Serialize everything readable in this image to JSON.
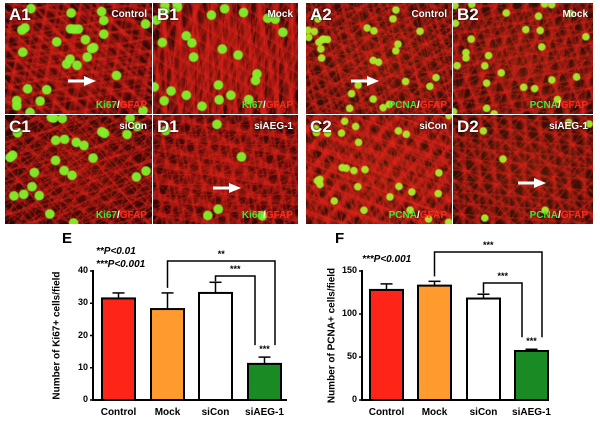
{
  "micrographs": [
    {
      "id": "A1",
      "condition": "Control",
      "stain_green": "Ki67",
      "stain_red": "GFAP",
      "arrow": true,
      "nuclei_density": "high"
    },
    {
      "id": "B1",
      "condition": "Mock",
      "stain_green": "Ki67",
      "stain_red": "GFAP",
      "arrow": false,
      "nuclei_density": "high"
    },
    {
      "id": "C1",
      "condition": "siCon",
      "stain_green": "Ki67",
      "stain_red": "GFAP",
      "arrow": false,
      "nuclei_density": "high"
    },
    {
      "id": "D1",
      "condition": "siAEG-1",
      "stain_green": "Ki67",
      "stain_red": "GFAP",
      "arrow": true,
      "nuclei_density": "low"
    },
    {
      "id": "A2",
      "condition": "Control",
      "stain_green": "PCNA",
      "stain_red": "GFAP",
      "arrow": true,
      "nuclei_density": "high"
    },
    {
      "id": "B2",
      "condition": "Mock",
      "stain_green": "PCNA",
      "stain_red": "GFAP",
      "arrow": false,
      "nuclei_density": "high"
    },
    {
      "id": "C2",
      "condition": "siCon",
      "stain_green": "PCNA",
      "stain_red": "GFAP",
      "arrow": false,
      "nuclei_density": "high"
    },
    {
      "id": "D2",
      "condition": "siAEG-1",
      "stain_green": "PCNA",
      "stain_red": "GFAP",
      "arrow": true,
      "nuclei_density": "low"
    }
  ],
  "stain_separator": "/",
  "colors": {
    "control": "#FF2418",
    "mock": "#FF9A2E",
    "sicon": "#FFFFFF",
    "siaeg1": "#1A8A24",
    "axis": "#000000"
  },
  "chart_data": [
    {
      "panel": "E",
      "type": "bar",
      "title": "",
      "xlabel": "",
      "ylabel": "Number of Ki67+ cells/field",
      "categories": [
        "Control",
        "Mock",
        "siCon",
        "siAEG-1"
      ],
      "values": [
        31.5,
        28.2,
        33.2,
        11.2
      ],
      "error_upper": [
        33.2,
        33.2,
        36.5,
        13.3
      ],
      "ylim": [
        0,
        40
      ],
      "yticks": [
        0,
        10,
        20,
        30,
        40
      ],
      "legend_text": [
        "**P<0.01",
        "***P<0.001"
      ],
      "annotations": [
        {
          "type": "bracket",
          "from": "Mock",
          "to": "siAEG-1",
          "label": "**"
        },
        {
          "type": "bracket",
          "from": "siCon",
          "to": "siAEG-1",
          "label": "***"
        },
        {
          "type": "bar_label",
          "bar": "siAEG-1",
          "label": "***"
        }
      ],
      "grid": false
    },
    {
      "panel": "F",
      "type": "bar",
      "title": "",
      "xlabel": "",
      "ylabel": "Number of PCNA+ cells/field",
      "categories": [
        "Control",
        "Mock",
        "siCon",
        "siAEG-1"
      ],
      "values": [
        128,
        133,
        118,
        57
      ],
      "error_upper": [
        135,
        138,
        123,
        59
      ],
      "ylim": [
        0,
        150
      ],
      "yticks": [
        0,
        50,
        100,
        150
      ],
      "legend_text": [
        "***P<0.001"
      ],
      "annotations": [
        {
          "type": "bracket",
          "from": "Mock",
          "to": "siAEG-1",
          "label": "***"
        },
        {
          "type": "bracket",
          "from": "siCon",
          "to": "siAEG-1",
          "label": "***"
        },
        {
          "type": "bar_label",
          "bar": "siAEG-1",
          "label": "***"
        }
      ],
      "grid": false
    }
  ]
}
